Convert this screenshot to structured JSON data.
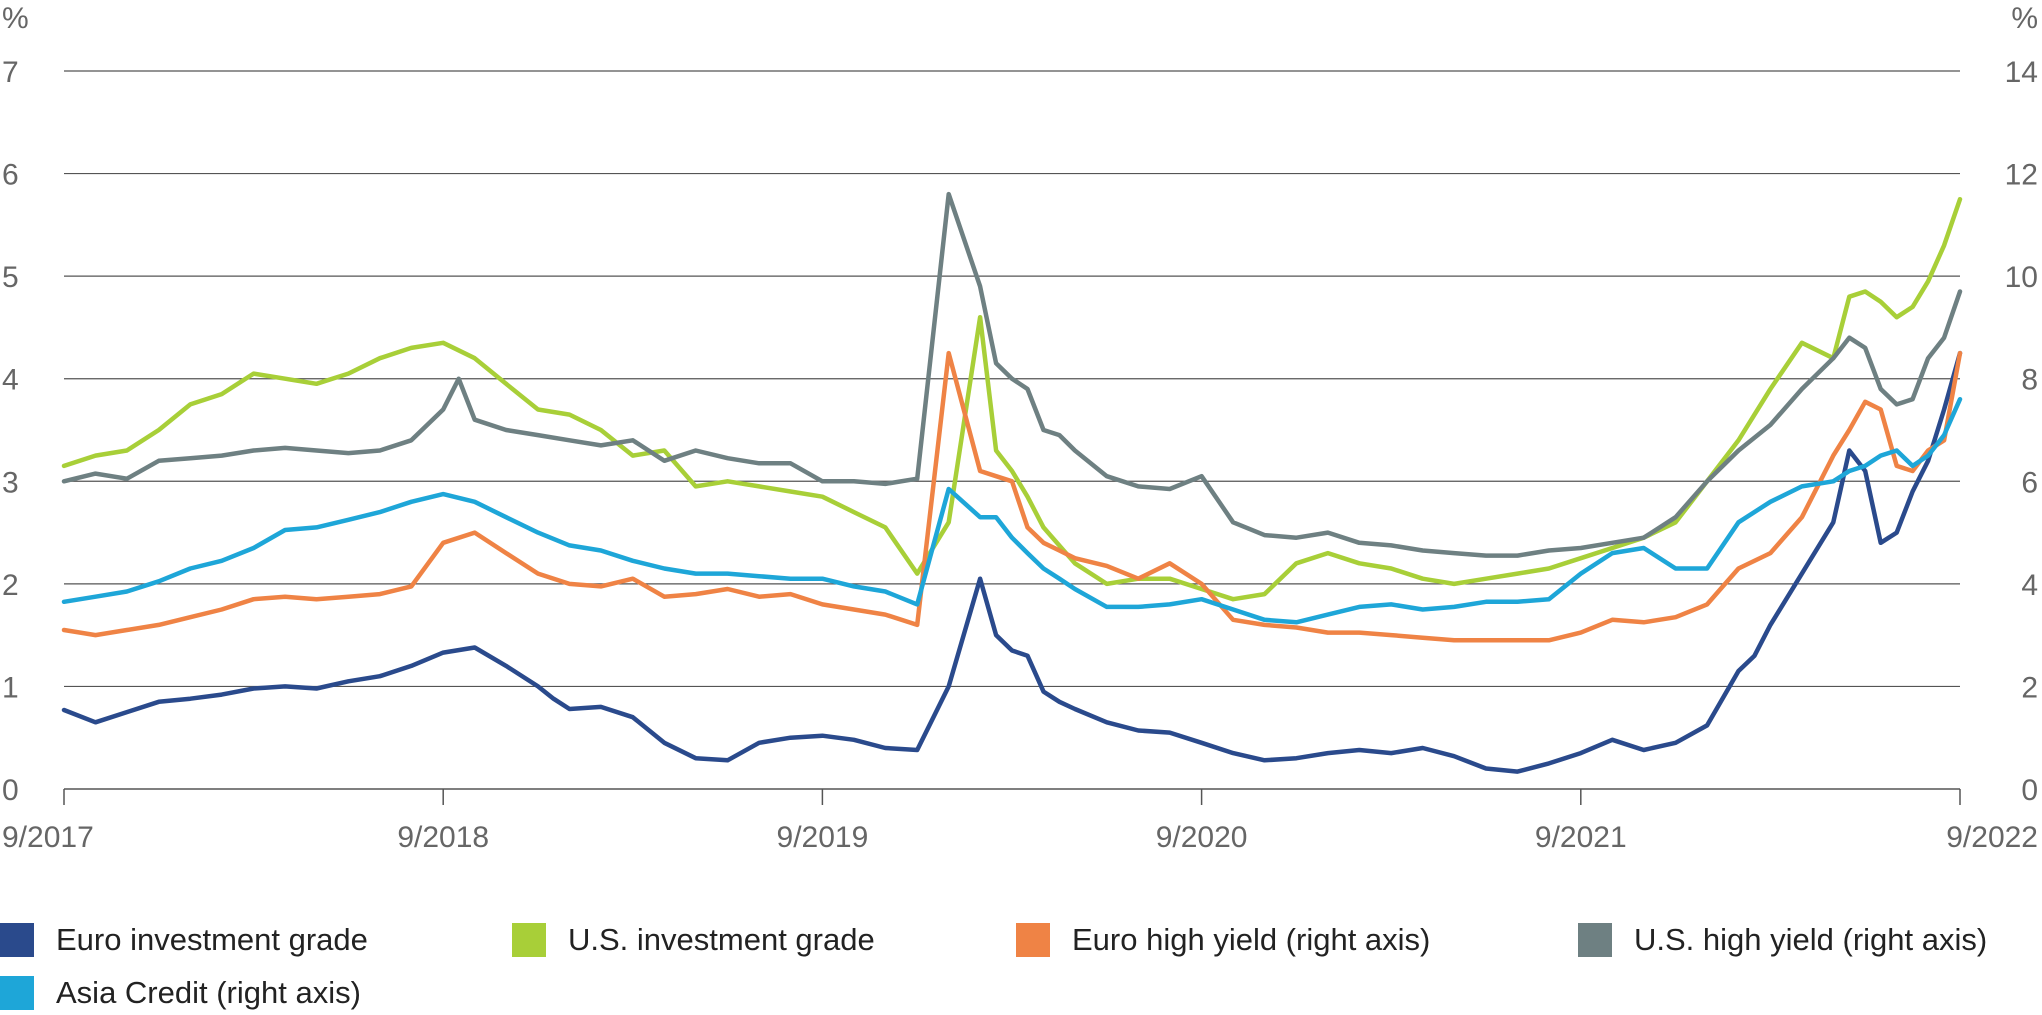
{
  "chart_data": {
    "type": "line",
    "x_ticks": [
      "9/2017",
      "9/2018",
      "9/2019",
      "9/2020",
      "9/2021",
      "9/2022"
    ],
    "x_range": [
      2017.667,
      2022.667
    ],
    "left_axis": {
      "label": "%",
      "ticks": [
        "0",
        "1",
        "2",
        "3",
        "4",
        "5",
        "6",
        "7"
      ],
      "range": [
        0,
        7
      ]
    },
    "right_axis": {
      "label": "%",
      "ticks": [
        "0",
        "2",
        "4",
        "6",
        "8",
        "10",
        "12",
        "14"
      ],
      "range": [
        0,
        14
      ]
    },
    "grid": true,
    "legend_position": "bottom",
    "series": [
      {
        "name": "Euro investment grade",
        "axis": "left",
        "color": "#2a4a8c",
        "x": [
          2017.667,
          2017.75,
          2017.833,
          2017.917,
          2018.0,
          2018.083,
          2018.167,
          2018.25,
          2018.333,
          2018.417,
          2018.5,
          2018.583,
          2018.667,
          2018.75,
          2018.833,
          2018.917,
          2018.958,
          2019.0,
          2019.083,
          2019.167,
          2019.25,
          2019.333,
          2019.417,
          2019.5,
          2019.583,
          2019.667,
          2019.75,
          2019.833,
          2019.917,
          2020.0,
          2020.083,
          2020.125,
          2020.167,
          2020.208,
          2020.25,
          2020.292,
          2020.333,
          2020.417,
          2020.5,
          2020.583,
          2020.667,
          2020.75,
          2020.833,
          2020.917,
          2021.0,
          2021.083,
          2021.167,
          2021.25,
          2021.333,
          2021.417,
          2021.5,
          2021.583,
          2021.667,
          2021.75,
          2021.833,
          2021.917,
          2022.0,
          2022.083,
          2022.125,
          2022.167,
          2022.25,
          2022.333,
          2022.375,
          2022.417,
          2022.458,
          2022.5,
          2022.542,
          2022.583,
          2022.625,
          2022.667
        ],
        "values": [
          0.77,
          0.65,
          0.75,
          0.85,
          0.88,
          0.92,
          0.98,
          1.0,
          0.98,
          1.05,
          1.1,
          1.2,
          1.33,
          1.38,
          1.2,
          1.0,
          0.88,
          0.78,
          0.8,
          0.7,
          0.45,
          0.3,
          0.28,
          0.45,
          0.5,
          0.52,
          0.48,
          0.4,
          0.38,
          1.0,
          2.05,
          1.5,
          1.35,
          1.3,
          0.95,
          0.85,
          0.78,
          0.65,
          0.57,
          0.55,
          0.45,
          0.35,
          0.28,
          0.3,
          0.35,
          0.38,
          0.35,
          0.4,
          0.32,
          0.2,
          0.17,
          0.25,
          0.35,
          0.48,
          0.38,
          0.45,
          0.62,
          1.15,
          1.3,
          1.6,
          2.1,
          2.6,
          3.3,
          3.1,
          2.4,
          2.5,
          2.9,
          3.2,
          3.7,
          4.25
        ]
      },
      {
        "name": "U.S. investment grade",
        "axis": "left",
        "color": "#a8cf38",
        "x": [
          2017.667,
          2017.75,
          2017.833,
          2017.917,
          2018.0,
          2018.083,
          2018.167,
          2018.25,
          2018.333,
          2018.417,
          2018.5,
          2018.583,
          2018.667,
          2018.75,
          2018.833,
          2018.917,
          2019.0,
          2019.083,
          2019.167,
          2019.25,
          2019.333,
          2019.417,
          2019.5,
          2019.583,
          2019.667,
          2019.75,
          2019.833,
          2019.917,
          2020.0,
          2020.083,
          2020.125,
          2020.167,
          2020.208,
          2020.25,
          2020.333,
          2020.417,
          2020.5,
          2020.583,
          2020.667,
          2020.75,
          2020.833,
          2020.917,
          2021.0,
          2021.083,
          2021.167,
          2021.25,
          2021.333,
          2021.417,
          2021.5,
          2021.583,
          2021.667,
          2021.75,
          2021.833,
          2021.917,
          2022.0,
          2022.083,
          2022.167,
          2022.25,
          2022.333,
          2022.375,
          2022.417,
          2022.458,
          2022.5,
          2022.542,
          2022.583,
          2022.625,
          2022.667
        ],
        "values": [
          3.15,
          3.25,
          3.3,
          3.5,
          3.75,
          3.85,
          4.05,
          4.0,
          3.95,
          4.05,
          4.2,
          4.3,
          4.35,
          4.2,
          3.95,
          3.7,
          3.65,
          3.5,
          3.25,
          3.3,
          2.95,
          3.0,
          2.95,
          2.9,
          2.85,
          2.7,
          2.55,
          2.1,
          2.6,
          4.6,
          3.3,
          3.1,
          2.85,
          2.55,
          2.2,
          2.0,
          2.05,
          2.05,
          1.95,
          1.85,
          1.9,
          2.2,
          2.3,
          2.2,
          2.15,
          2.05,
          2.0,
          2.05,
          2.1,
          2.15,
          2.25,
          2.35,
          2.45,
          2.6,
          3.0,
          3.4,
          3.9,
          4.35,
          4.2,
          4.8,
          4.85,
          4.75,
          4.6,
          4.7,
          4.95,
          5.3,
          5.75
        ]
      },
      {
        "name": "Euro high yield (right axis)",
        "axis": "right",
        "color": "#ef8345",
        "x": [
          2017.667,
          2017.75,
          2017.833,
          2017.917,
          2018.0,
          2018.083,
          2018.167,
          2018.25,
          2018.333,
          2018.417,
          2018.5,
          2018.583,
          2018.667,
          2018.75,
          2018.833,
          2018.917,
          2019.0,
          2019.083,
          2019.167,
          2019.25,
          2019.333,
          2019.417,
          2019.5,
          2019.583,
          2019.667,
          2019.75,
          2019.833,
          2019.917,
          2020.0,
          2020.083,
          2020.125,
          2020.167,
          2020.208,
          2020.25,
          2020.292,
          2020.333,
          2020.417,
          2020.5,
          2020.583,
          2020.667,
          2020.75,
          2020.833,
          2020.917,
          2021.0,
          2021.083,
          2021.167,
          2021.25,
          2021.333,
          2021.417,
          2021.5,
          2021.583,
          2021.667,
          2021.75,
          2021.833,
          2021.917,
          2022.0,
          2022.083,
          2022.167,
          2022.25,
          2022.333,
          2022.375,
          2022.417,
          2022.458,
          2022.5,
          2022.542,
          2022.583,
          2022.625,
          2022.667
        ],
        "values": [
          3.1,
          3.0,
          3.1,
          3.2,
          3.35,
          3.5,
          3.7,
          3.75,
          3.7,
          3.75,
          3.8,
          3.95,
          4.8,
          5.0,
          4.6,
          4.2,
          4.0,
          3.95,
          4.1,
          3.75,
          3.8,
          3.9,
          3.75,
          3.8,
          3.6,
          3.5,
          3.4,
          3.2,
          8.5,
          6.2,
          6.1,
          6.0,
          5.1,
          4.8,
          4.65,
          4.5,
          4.35,
          4.1,
          4.4,
          4.0,
          3.3,
          3.2,
          3.15,
          3.05,
          3.05,
          3.0,
          2.95,
          2.9,
          2.9,
          2.9,
          2.9,
          3.05,
          3.3,
          3.25,
          3.35,
          3.6,
          4.3,
          4.6,
          5.3,
          6.5,
          7.0,
          7.55,
          7.4,
          6.3,
          6.2,
          6.6,
          6.8,
          8.5
        ]
      },
      {
        "name": "U.S. high yield (right axis)",
        "axis": "right",
        "color": "#6e8082",
        "x": [
          2017.667,
          2017.75,
          2017.833,
          2017.917,
          2018.0,
          2018.083,
          2018.167,
          2018.25,
          2018.333,
          2018.417,
          2018.5,
          2018.583,
          2018.667,
          2018.708,
          2018.75,
          2018.833,
          2018.917,
          2019.0,
          2019.083,
          2019.167,
          2019.25,
          2019.333,
          2019.417,
          2019.5,
          2019.583,
          2019.667,
          2019.75,
          2019.833,
          2019.917,
          2020.0,
          2020.083,
          2020.125,
          2020.167,
          2020.208,
          2020.25,
          2020.292,
          2020.333,
          2020.417,
          2020.5,
          2020.583,
          2020.667,
          2020.75,
          2020.833,
          2020.917,
          2021.0,
          2021.083,
          2021.167,
          2021.25,
          2021.333,
          2021.417,
          2021.5,
          2021.583,
          2021.667,
          2021.75,
          2021.833,
          2021.917,
          2022.0,
          2022.083,
          2022.167,
          2022.25,
          2022.333,
          2022.375,
          2022.417,
          2022.458,
          2022.5,
          2022.542,
          2022.583,
          2022.625,
          2022.667
        ],
        "values": [
          6.0,
          6.15,
          6.05,
          6.4,
          6.45,
          6.5,
          6.6,
          6.65,
          6.6,
          6.55,
          6.6,
          6.8,
          7.4,
          8.0,
          7.2,
          7.0,
          6.9,
          6.8,
          6.7,
          6.8,
          6.4,
          6.6,
          6.45,
          6.35,
          6.35,
          6.0,
          6.0,
          5.95,
          6.05,
          11.6,
          9.8,
          8.3,
          8.0,
          7.8,
          7.0,
          6.9,
          6.6,
          6.1,
          5.9,
          5.85,
          6.1,
          5.2,
          4.95,
          4.9,
          5.0,
          4.8,
          4.75,
          4.65,
          4.6,
          4.55,
          4.55,
          4.65,
          4.7,
          4.8,
          4.9,
          5.3,
          6.0,
          6.6,
          7.1,
          7.8,
          8.4,
          8.8,
          8.6,
          7.8,
          7.5,
          7.6,
          8.4,
          8.8,
          9.7
        ]
      },
      {
        "name": "Asia Credit (right axis)",
        "axis": "right",
        "color": "#1ea6d8",
        "x": [
          2017.667,
          2017.75,
          2017.833,
          2017.917,
          2018.0,
          2018.083,
          2018.167,
          2018.25,
          2018.333,
          2018.417,
          2018.5,
          2018.583,
          2018.667,
          2018.75,
          2018.833,
          2018.917,
          2019.0,
          2019.083,
          2019.167,
          2019.25,
          2019.333,
          2019.417,
          2019.5,
          2019.583,
          2019.667,
          2019.75,
          2019.833,
          2019.917,
          2020.0,
          2020.083,
          2020.125,
          2020.167,
          2020.208,
          2020.25,
          2020.292,
          2020.333,
          2020.417,
          2020.5,
          2020.583,
          2020.667,
          2020.75,
          2020.833,
          2020.917,
          2021.0,
          2021.083,
          2021.167,
          2021.25,
          2021.333,
          2021.417,
          2021.5,
          2021.583,
          2021.667,
          2021.75,
          2021.833,
          2021.917,
          2022.0,
          2022.083,
          2022.167,
          2022.25,
          2022.333,
          2022.375,
          2022.417,
          2022.458,
          2022.5,
          2022.542,
          2022.583,
          2022.625,
          2022.667
        ],
        "values": [
          3.65,
          3.75,
          3.85,
          4.05,
          4.3,
          4.45,
          4.7,
          5.05,
          5.1,
          5.25,
          5.4,
          5.6,
          5.75,
          5.6,
          5.3,
          5.0,
          4.75,
          4.65,
          4.45,
          4.3,
          4.2,
          4.2,
          4.15,
          4.1,
          4.1,
          3.95,
          3.85,
          3.6,
          5.85,
          5.3,
          5.3,
          4.9,
          4.6,
          4.3,
          4.1,
          3.9,
          3.55,
          3.55,
          3.6,
          3.7,
          3.5,
          3.3,
          3.25,
          3.4,
          3.55,
          3.6,
          3.5,
          3.55,
          3.65,
          3.65,
          3.7,
          4.2,
          4.6,
          4.7,
          4.3,
          4.3,
          5.2,
          5.6,
          5.9,
          6.0,
          6.2,
          6.3,
          6.5,
          6.6,
          6.3,
          6.5,
          6.9,
          7.6
        ]
      }
    ]
  }
}
